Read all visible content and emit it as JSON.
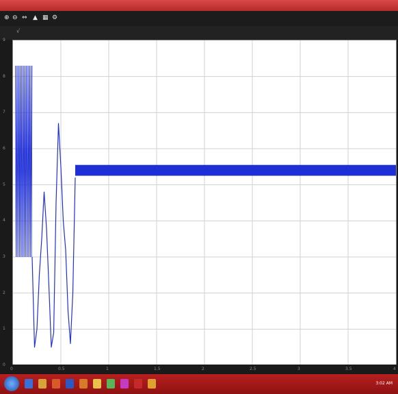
{
  "window": {
    "title": ""
  },
  "toolbar": {
    "items": [
      {
        "label": "⊕",
        "icon": "zoom-in-icon"
      },
      {
        "label": "⊖",
        "icon": "zoom-out-icon"
      },
      {
        "label": "⇔",
        "icon": "pan-icon"
      },
      {
        "label": "▲",
        "icon": "autoscale-icon"
      },
      {
        "label": "▦",
        "icon": "save-icon"
      },
      {
        "label": "⚙",
        "icon": "params-icon"
      }
    ],
    "axis_tag": "√"
  },
  "chart_data": {
    "type": "line",
    "title": "",
    "xlabel": "",
    "ylabel": "",
    "xlim": [
      0,
      8
    ],
    "ylim": [
      0,
      9
    ],
    "grid": true,
    "series": [
      {
        "color": "#1f2fd6",
        "segments": [
          {
            "kind": "oscillation",
            "x_start": 0.05,
            "x_end": 0.4,
            "y_low": 3.0,
            "y_high": 8.3
          },
          {
            "kind": "curve",
            "points": [
              [
                0.4,
                3.0
              ],
              [
                0.45,
                0.5
              ],
              [
                0.5,
                1.0
              ],
              [
                0.55,
                2.5
              ],
              [
                0.6,
                3.5
              ],
              [
                0.65,
                4.8
              ],
              [
                0.7,
                3.8
              ],
              [
                0.75,
                2.2
              ],
              [
                0.8,
                0.5
              ],
              [
                0.85,
                0.9
              ],
              [
                0.9,
                4.5
              ],
              [
                0.95,
                6.7
              ],
              [
                1.0,
                5.5
              ],
              [
                1.05,
                4.0
              ],
              [
                1.1,
                3.2
              ],
              [
                1.15,
                1.5
              ],
              [
                1.2,
                0.6
              ],
              [
                1.25,
                2.0
              ],
              [
                1.3,
                5.2
              ]
            ]
          },
          {
            "kind": "band",
            "x_start": 1.3,
            "x_end": 8.0,
            "y_low": 5.25,
            "y_high": 5.55
          }
        ]
      }
    ],
    "x_ticks": [
      "0",
      "0.5",
      "1",
      "1.5",
      "2",
      "2.5",
      "3",
      "3.5",
      "4"
    ],
    "y_ticks": [
      "9",
      "8",
      "7",
      "6",
      "5",
      "4",
      "3",
      "2",
      "1",
      "0"
    ]
  },
  "taskbar": {
    "start_icon": "windows-start-icon",
    "apps": [
      {
        "icon": "explorer-icon",
        "color": "#3a6fd8"
      },
      {
        "icon": "media-icon",
        "color": "#d6a33a"
      },
      {
        "icon": "firefox-icon",
        "color": "#d85a2a"
      },
      {
        "icon": "word-icon",
        "color": "#2a58c4"
      },
      {
        "icon": "matlab-icon",
        "color": "#d8782a"
      },
      {
        "icon": "folder-icon",
        "color": "#e8c24a"
      },
      {
        "icon": "paint-icon",
        "color": "#5ab55a"
      },
      {
        "icon": "app-icon",
        "color": "#c43ac4"
      },
      {
        "icon": "pdf-icon",
        "color": "#c42a2a"
      },
      {
        "icon": "simulink-icon",
        "color": "#e0a030"
      }
    ],
    "clock": "3:02 AM"
  }
}
